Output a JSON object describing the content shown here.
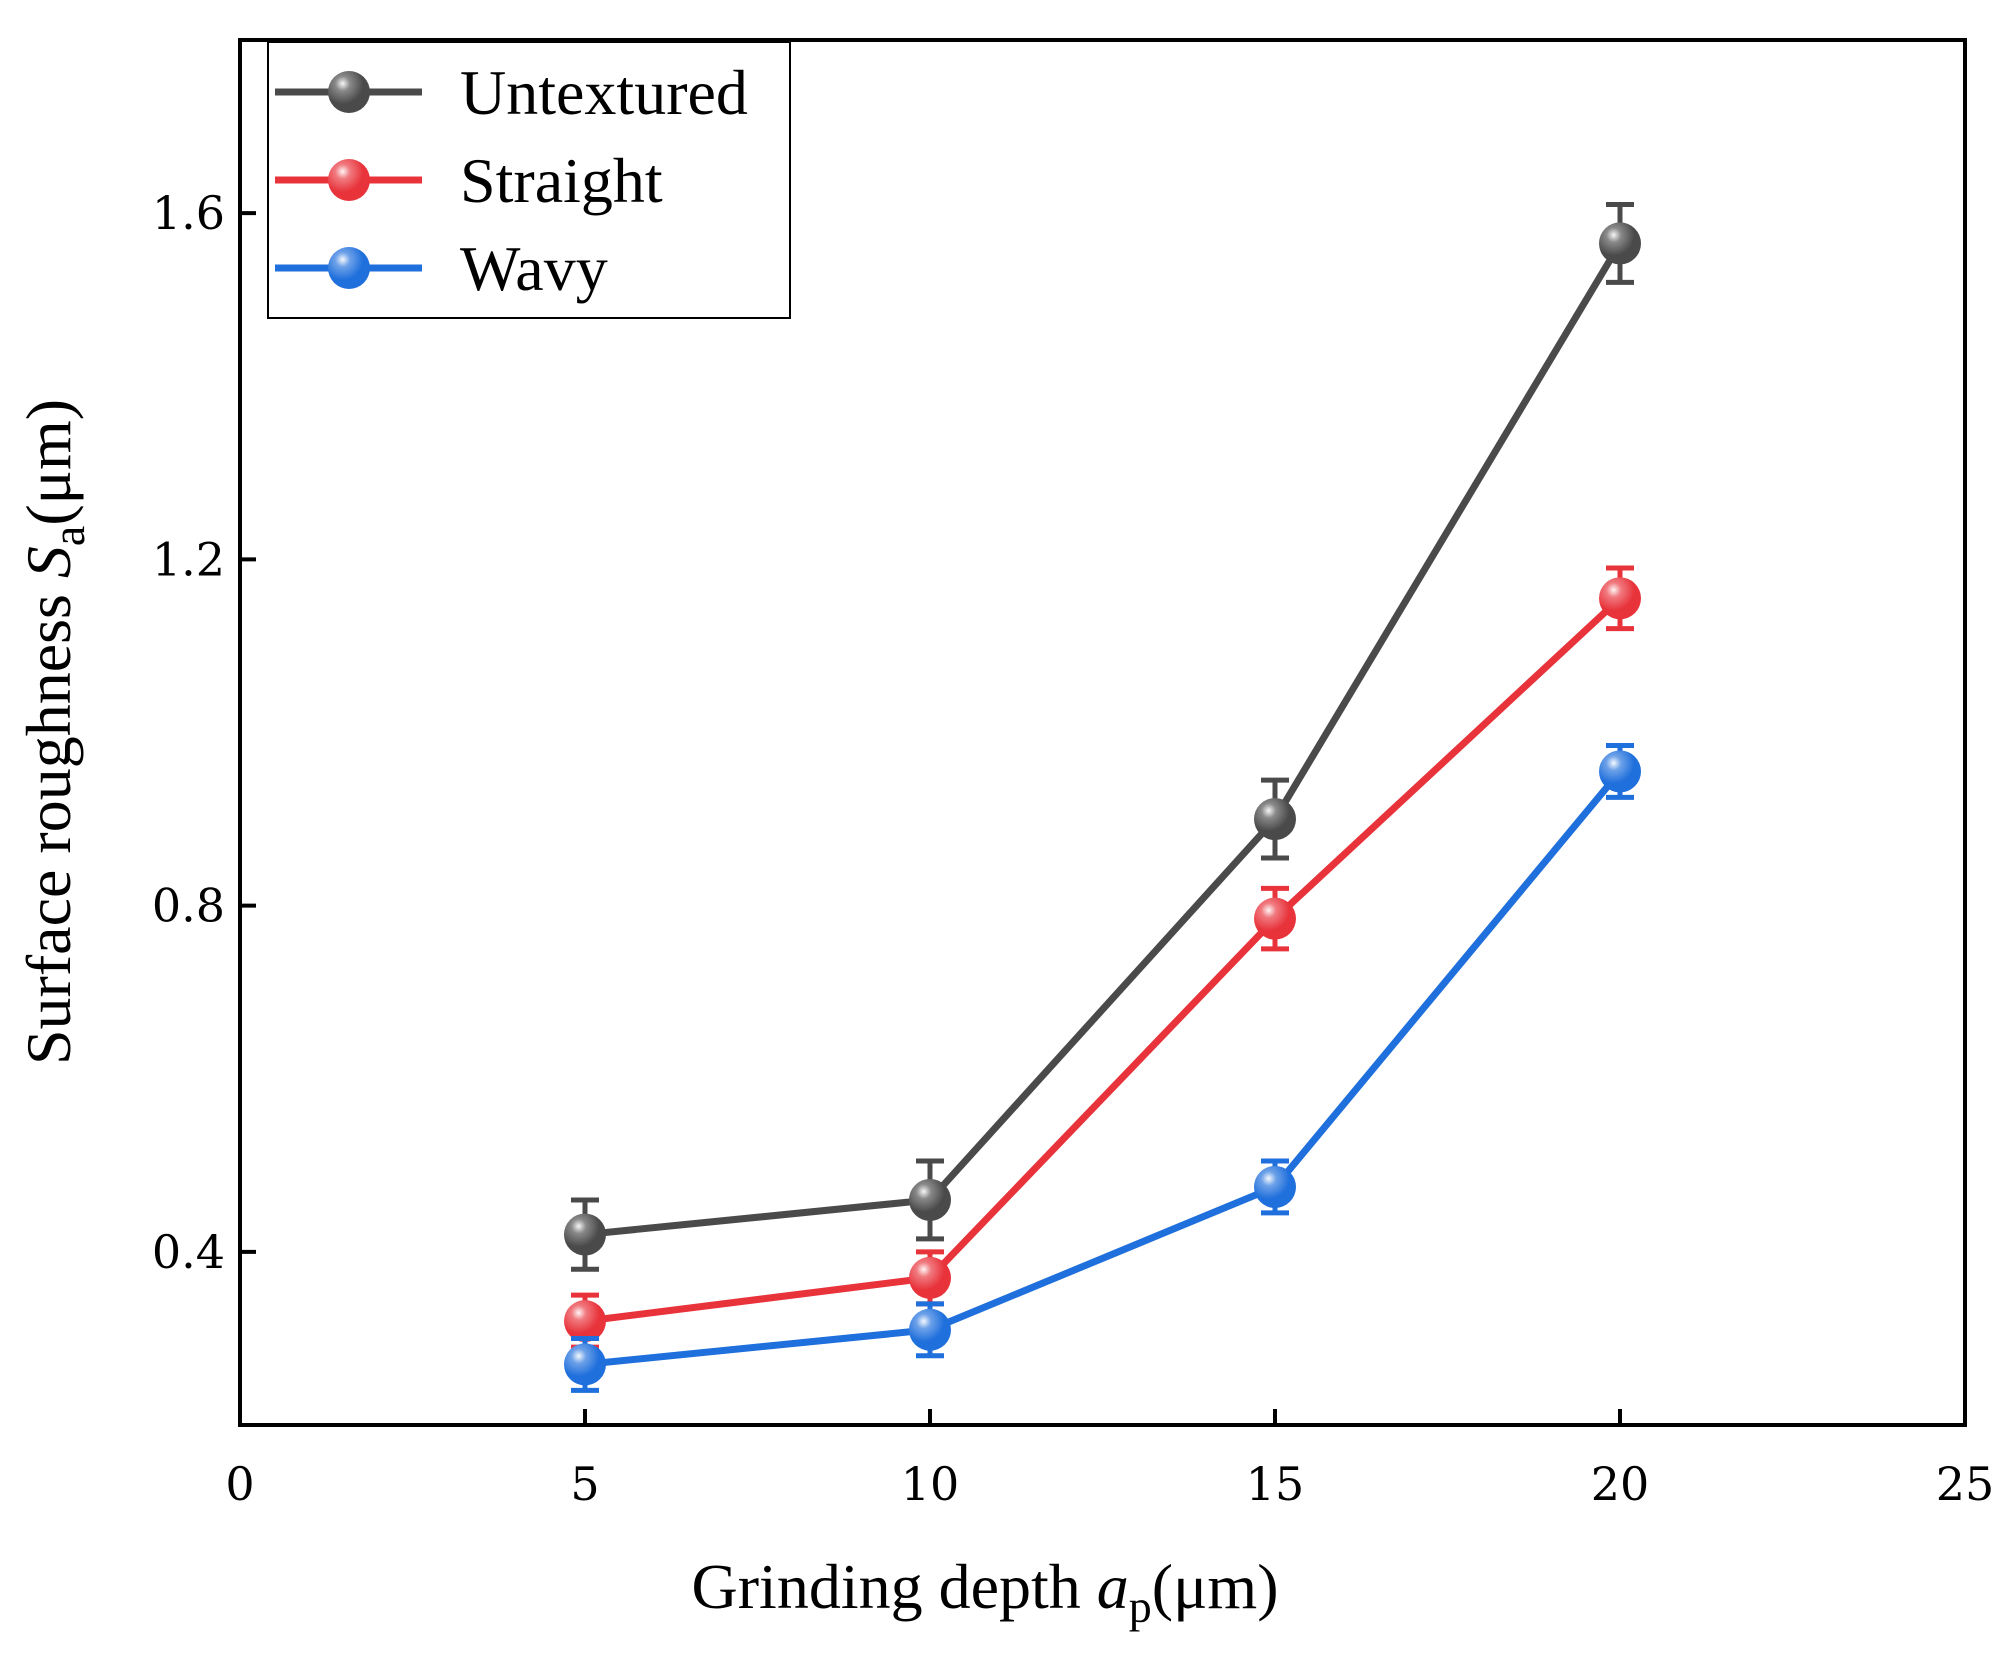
{
  "chart_data": {
    "type": "line",
    "xlabel": {
      "prefix": "Grinding depth ",
      "symbol": "a",
      "subscript": "p",
      "unit": "(μm)"
    },
    "ylabel": {
      "prefix": "Surface roughness ",
      "symbol": "S",
      "subscript": "a",
      "unit": "(μm)"
    },
    "xlim": [
      0,
      25
    ],
    "ylim": [
      0.2,
      1.8
    ],
    "xticks": [
      "0",
      "5",
      "10",
      "15",
      "20",
      "25"
    ],
    "yticks": [
      "0.4",
      "0.8",
      "1.2",
      "1.6"
    ],
    "x": [
      5,
      10,
      15,
      20
    ],
    "legend_position": "top-left",
    "series": [
      {
        "name": "Untextured",
        "color": "#4a4a4a",
        "values": [
          0.42,
          0.46,
          0.9,
          1.565
        ],
        "errors": [
          0.04,
          0.045,
          0.045,
          0.045
        ]
      },
      {
        "name": "Straight",
        "color": "#e8333b",
        "values": [
          0.32,
          0.37,
          0.785,
          1.155
        ],
        "errors": [
          0.03,
          0.03,
          0.035,
          0.035
        ]
      },
      {
        "name": "Wavy",
        "color": "#1f6fdc",
        "values": [
          0.27,
          0.31,
          0.475,
          0.955
        ],
        "errors": [
          0.03,
          0.03,
          0.03,
          0.03
        ]
      }
    ]
  }
}
